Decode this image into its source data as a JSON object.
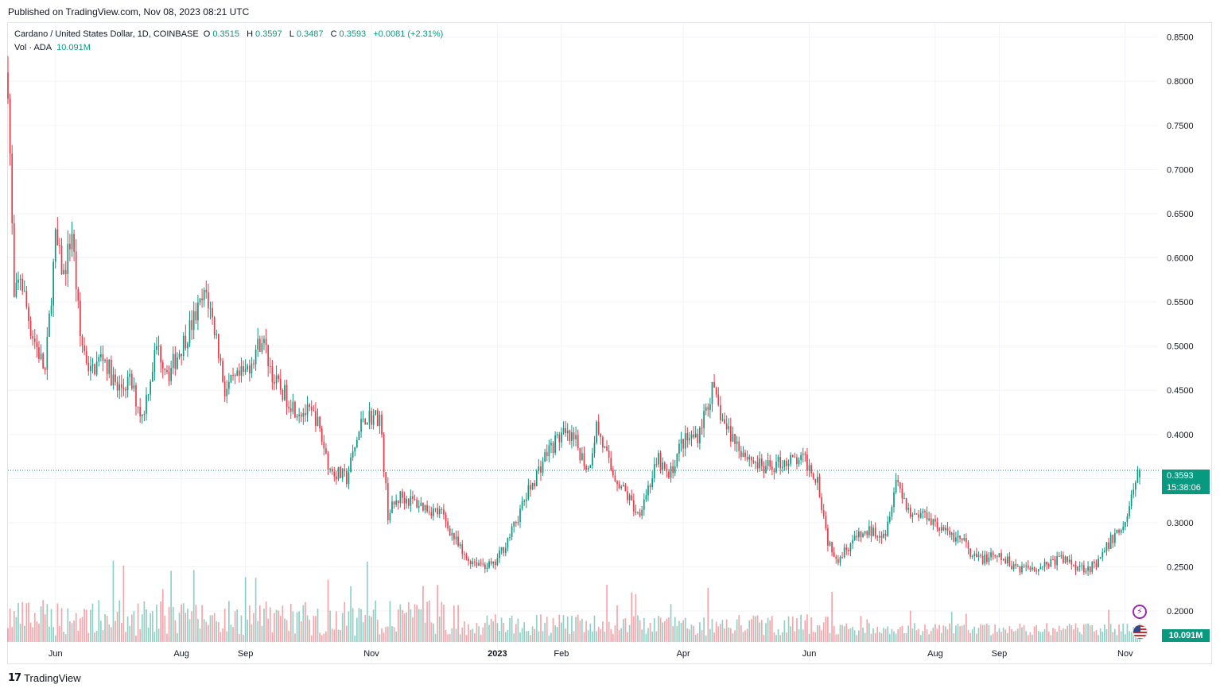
{
  "header": {
    "published": "Published on TradingView.com, Nov 08, 2023 08:21 UTC"
  },
  "legend": {
    "symbol": "Cardano / United States Dollar, 1D, COINBASE",
    "open_label": "O",
    "open": "0.3515",
    "high_label": "H",
    "high": "0.3597",
    "low_label": "L",
    "low": "0.3487",
    "close_label": "C",
    "close": "0.3593",
    "change": "+0.0081 (+2.31%)",
    "vol_label": "Vol · ADA",
    "vol_value": "10.091M"
  },
  "price_tag": {
    "price": "0.3593",
    "countdown": "15:38:06"
  },
  "vol_tag": "10.091M",
  "footer": {
    "brand": "TradingView"
  },
  "colors": {
    "up": "#089981",
    "down": "#f23645",
    "grid": "#f0f3fa",
    "text": "#131722"
  },
  "icons": [
    "lightning-icon",
    "us-flag-icon",
    "tradingview-logo-icon"
  ],
  "chart_data": {
    "type": "candlestick",
    "symbol": "ADA/USD",
    "interval": "1D",
    "yaxis": {
      "range": [
        0.165,
        0.865
      ],
      "ticks": [
        "0.8500",
        "0.8000",
        "0.7500",
        "0.7000",
        "0.6500",
        "0.6000",
        "0.5500",
        "0.5000",
        "0.4500",
        "0.4000",
        "0.3500",
        "0.3000",
        "0.2500",
        "0.2000"
      ],
      "tick_values": [
        0.85,
        0.8,
        0.75,
        0.7,
        0.65,
        0.6,
        0.55,
        0.5,
        0.45,
        0.4,
        0.35,
        0.3,
        0.25,
        0.2
      ]
    },
    "xaxis": {
      "labels": [
        "Jun",
        "Aug",
        "Sep",
        "Nov",
        "2023",
        "Feb",
        "Apr",
        "Jun",
        "Aug",
        "Sep",
        "Nov"
      ],
      "label_dates": [
        "2022-06-01",
        "2022-08-01",
        "2022-09-01",
        "2022-11-01",
        "2023-01-01",
        "2023-02-01",
        "2023-04-01",
        "2023-06-01",
        "2023-08-01",
        "2023-09-01",
        "2023-11-01"
      ],
      "start": "2022-05-09",
      "end": "2023-11-08"
    },
    "last_close": 0.3593,
    "close_anchors": [
      [
        "2022-05-09",
        0.8
      ],
      [
        "2022-05-12",
        0.55
      ],
      [
        "2022-05-15",
        0.58
      ],
      [
        "2022-05-20",
        0.52
      ],
      [
        "2022-05-27",
        0.47
      ],
      [
        "2022-06-01",
        0.62
      ],
      [
        "2022-06-05",
        0.58
      ],
      [
        "2022-06-09",
        0.63
      ],
      [
        "2022-06-13",
        0.51
      ],
      [
        "2022-06-18",
        0.47
      ],
      [
        "2022-06-24",
        0.49
      ],
      [
        "2022-07-01",
        0.45
      ],
      [
        "2022-07-07",
        0.46
      ],
      [
        "2022-07-13",
        0.42
      ],
      [
        "2022-07-20",
        0.5
      ],
      [
        "2022-07-26",
        0.47
      ],
      [
        "2022-08-05",
        0.52
      ],
      [
        "2022-08-13",
        0.56
      ],
      [
        "2022-08-18",
        0.51
      ],
      [
        "2022-08-22",
        0.45
      ],
      [
        "2022-09-01",
        0.47
      ],
      [
        "2022-09-05",
        0.49
      ],
      [
        "2022-09-09",
        0.51
      ],
      [
        "2022-09-15",
        0.46
      ],
      [
        "2022-09-25",
        0.43
      ],
      [
        "2022-10-05",
        0.42
      ],
      [
        "2022-10-12",
        0.36
      ],
      [
        "2022-10-20",
        0.35
      ],
      [
        "2022-10-28",
        0.42
      ],
      [
        "2022-11-05",
        0.42
      ],
      [
        "2022-11-09",
        0.31
      ],
      [
        "2022-11-15",
        0.33
      ],
      [
        "2022-11-25",
        0.32
      ],
      [
        "2022-12-05",
        0.31
      ],
      [
        "2022-12-16",
        0.26
      ],
      [
        "2022-12-30",
        0.25
      ],
      [
        "2023-01-08",
        0.29
      ],
      [
        "2023-01-15",
        0.33
      ],
      [
        "2023-01-25",
        0.38
      ],
      [
        "2023-02-01",
        0.4
      ],
      [
        "2023-02-08",
        0.39
      ],
      [
        "2023-02-14",
        0.36
      ],
      [
        "2023-02-18",
        0.41
      ],
      [
        "2023-02-25",
        0.36
      ],
      [
        "2023-03-05",
        0.33
      ],
      [
        "2023-03-10",
        0.31
      ],
      [
        "2023-03-15",
        0.34
      ],
      [
        "2023-03-20",
        0.37
      ],
      [
        "2023-03-25",
        0.35
      ],
      [
        "2023-03-31",
        0.39
      ],
      [
        "2023-04-08",
        0.4
      ],
      [
        "2023-04-15",
        0.45
      ],
      [
        "2023-04-21",
        0.41
      ],
      [
        "2023-04-30",
        0.38
      ],
      [
        "2023-05-10",
        0.36
      ],
      [
        "2023-05-20",
        0.37
      ],
      [
        "2023-05-30",
        0.37
      ],
      [
        "2023-06-05",
        0.35
      ],
      [
        "2023-06-10",
        0.28
      ],
      [
        "2023-06-15",
        0.26
      ],
      [
        "2023-06-22",
        0.28
      ],
      [
        "2023-06-30",
        0.29
      ],
      [
        "2023-07-08",
        0.29
      ],
      [
        "2023-07-13",
        0.35
      ],
      [
        "2023-07-20",
        0.31
      ],
      [
        "2023-07-28",
        0.31
      ],
      [
        "2023-08-05",
        0.29
      ],
      [
        "2023-08-15",
        0.28
      ],
      [
        "2023-08-18",
        0.26
      ],
      [
        "2023-08-25",
        0.26
      ],
      [
        "2023-09-01",
        0.26
      ],
      [
        "2023-09-10",
        0.25
      ],
      [
        "2023-09-20",
        0.25
      ],
      [
        "2023-10-01",
        0.26
      ],
      [
        "2023-10-10",
        0.25
      ],
      [
        "2023-10-18",
        0.25
      ],
      [
        "2023-10-25",
        0.28
      ],
      [
        "2023-11-01",
        0.3
      ],
      [
        "2023-11-04",
        0.33
      ],
      [
        "2023-11-08",
        0.3593
      ]
    ]
  }
}
